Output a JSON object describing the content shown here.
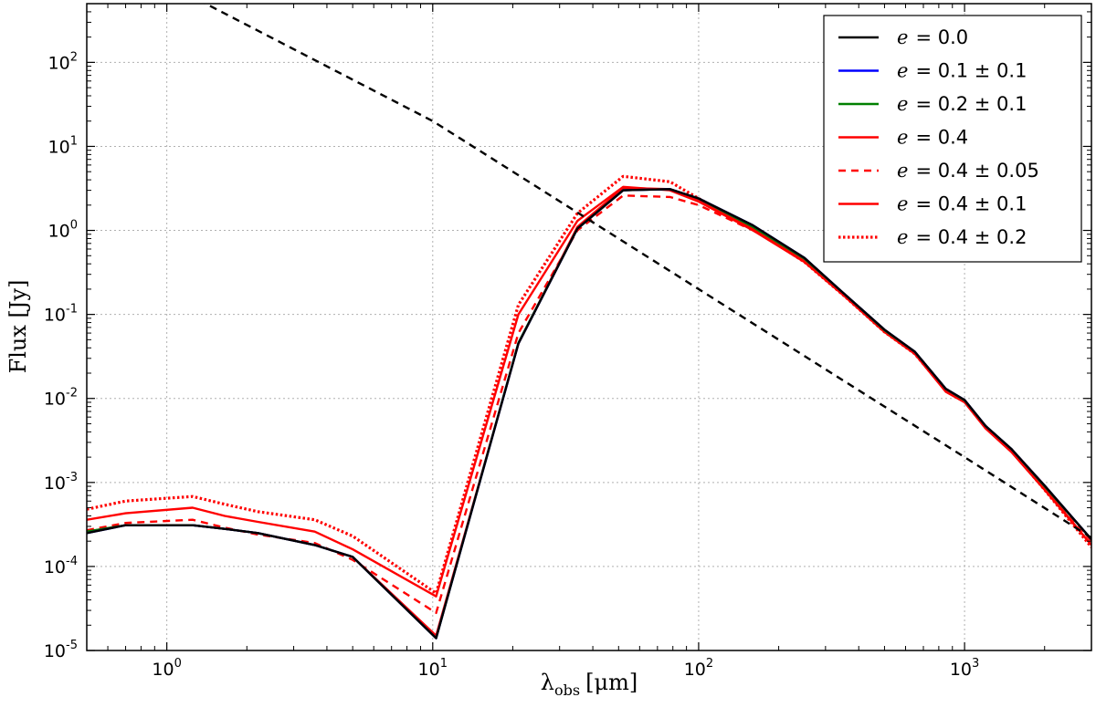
{
  "chart_data": {
    "type": "line",
    "xlabel": "λobs [μm]",
    "xlabel_main": "λ",
    "xlabel_sub": "obs",
    "xlabel_unit": "[μm]",
    "ylabel": "Flux [Jy]",
    "xscale": "log",
    "yscale": "log",
    "xlim": [
      0.5,
      3000
    ],
    "ylim": [
      1e-05,
      500
    ],
    "grid": true,
    "legend_position": "top-right",
    "x_ticks": [
      {
        "base": "10",
        "exp": "0",
        "value": 1
      },
      {
        "base": "10",
        "exp": "1",
        "value": 10
      },
      {
        "base": "10",
        "exp": "2",
        "value": 100
      },
      {
        "base": "10",
        "exp": "3",
        "value": 1000
      }
    ],
    "y_ticks": [
      {
        "base": "10",
        "exp": "-5",
        "value": 1e-05
      },
      {
        "base": "10",
        "exp": "-4",
        "value": 0.0001
      },
      {
        "base": "10",
        "exp": "-3",
        "value": 0.001
      },
      {
        "base": "10",
        "exp": "-2",
        "value": 0.01
      },
      {
        "base": "10",
        "exp": "-1",
        "value": 0.1
      },
      {
        "base": "10",
        "exp": "0",
        "value": 1
      },
      {
        "base": "10",
        "exp": "1",
        "value": 10
      },
      {
        "base": "10",
        "exp": "2",
        "value": 100
      }
    ],
    "series": [
      {
        "name": "e = 0.4 ± 0.2",
        "label_prefix": "e",
        "label_value": "= 0.4 ± 0.2",
        "color": "#ff0000",
        "style": "dotted",
        "x": [
          0.5,
          0.7,
          1.25,
          1.65,
          2.2,
          3.6,
          5.0,
          10.3,
          21,
          35,
          52,
          78,
          100,
          160,
          250,
          350,
          500,
          650,
          850,
          1000,
          1200,
          1500,
          2000,
          3000
        ],
        "y": [
          0.00048,
          0.0006,
          0.00068,
          0.00055,
          0.00045,
          0.00036,
          0.00023,
          4.8e-05,
          0.13,
          1.6,
          4.4,
          3.8,
          2.4,
          1.05,
          0.42,
          0.17,
          0.062,
          0.034,
          0.0125,
          0.0092,
          0.0045,
          0.0024,
          0.00082,
          0.00017
        ]
      },
      {
        "name": "e = 0.4 ± 0.1",
        "label_prefix": "e",
        "label_value": "= 0.4 ± 0.1",
        "color": "#ff0000",
        "style": "solid",
        "x": [
          0.5,
          0.7,
          1.25,
          1.65,
          2.2,
          3.6,
          5.0,
          10.3,
          21,
          35,
          52,
          78,
          100,
          160,
          250,
          350,
          500,
          650,
          850,
          1000,
          1200,
          1500,
          2000,
          3000
        ],
        "y": [
          0.00036,
          0.00043,
          0.0005,
          0.0004,
          0.00034,
          0.00026,
          0.00016,
          4.4e-05,
          0.1,
          1.3,
          3.3,
          3.0,
          2.2,
          1.0,
          0.42,
          0.17,
          0.062,
          0.034,
          0.0125,
          0.0092,
          0.0045,
          0.0024,
          0.00085,
          0.00018
        ]
      },
      {
        "name": "e = 0.4 ± 0.05",
        "label_prefix": "e",
        "label_value": "= 0.4 ± 0.05",
        "color": "#ff0000",
        "style": "dashed",
        "x": [
          0.5,
          0.7,
          1.25,
          1.65,
          2.2,
          3.6,
          5.0,
          10.3,
          21,
          35,
          52,
          78,
          100,
          160,
          250,
          350,
          500,
          650,
          850,
          1000,
          1200,
          1500,
          2000,
          3000
        ],
        "y": [
          0.00027,
          0.00033,
          0.00036,
          0.00029,
          0.00024,
          0.00019,
          0.00012,
          2.8e-05,
          0.06,
          1.0,
          2.6,
          2.5,
          2.0,
          1.0,
          0.44,
          0.18,
          0.065,
          0.036,
          0.013,
          0.0095,
          0.0047,
          0.0025,
          0.00092,
          0.0002
        ]
      },
      {
        "name": "e = 0.4",
        "label_prefix": "e",
        "label_value": "= 0.4",
        "color": "#ff0000",
        "style": "solid",
        "x": [
          0.5,
          0.7,
          1.25,
          1.65,
          2.2,
          3.6,
          5.0,
          10.3,
          21,
          35,
          52,
          78,
          100,
          160,
          250,
          350,
          500,
          650,
          850,
          1000,
          1200,
          1500,
          2000,
          3000
        ],
        "y": [
          0.00026,
          0.00031,
          0.00031,
          0.00028,
          0.00025,
          0.00018,
          0.00013,
          1.5e-05,
          0.045,
          1.1,
          3.2,
          3.1,
          2.3,
          1.05,
          0.43,
          0.17,
          0.062,
          0.034,
          0.012,
          0.009,
          0.0044,
          0.0023,
          0.00082,
          0.00018
        ]
      },
      {
        "name": "e = 0.2 ± 0.1",
        "label_prefix": "e",
        "label_value": "= 0.2 ± 0.1",
        "color": "#008000",
        "style": "solid",
        "x": [
          0.5,
          0.7,
          1.25,
          1.65,
          2.2,
          3.6,
          5.0,
          10.3,
          21,
          35,
          52,
          78,
          100,
          160,
          250,
          350,
          500,
          650,
          850,
          1000,
          1200,
          1500,
          2000,
          3000
        ],
        "y": [
          0.00026,
          0.00031,
          0.00031,
          0.00028,
          0.00025,
          0.00018,
          0.00013,
          1.4e-05,
          0.046,
          1.05,
          3.0,
          3.1,
          2.4,
          1.1,
          0.46,
          0.18,
          0.065,
          0.036,
          0.013,
          0.0095,
          0.0047,
          0.0025,
          0.0009,
          0.00021
        ]
      },
      {
        "name": "e = 0.1 ± 0.1",
        "label_prefix": "e",
        "label_value": "= 0.1 ± 0.1",
        "color": "#0000ff",
        "style": "solid",
        "x": [
          0.5,
          0.7,
          1.25,
          1.65,
          2.2,
          3.6,
          5.0,
          10.3,
          21,
          35,
          52,
          78,
          100,
          160,
          250,
          350,
          500,
          650,
          850,
          1000,
          1200,
          1500,
          2000,
          3000
        ],
        "y": [
          0.00025,
          0.00031,
          0.00031,
          0.00028,
          0.00025,
          0.00018,
          0.00013,
          1.4e-05,
          0.045,
          1.05,
          3.0,
          3.1,
          2.4,
          1.15,
          0.47,
          0.18,
          0.066,
          0.036,
          0.013,
          0.0096,
          0.0047,
          0.0025,
          0.00092,
          0.00021
        ]
      },
      {
        "name": "e = 0.0",
        "label_prefix": "e",
        "label_value": "= 0.0",
        "color": "#000000",
        "style": "solid",
        "x": [
          0.5,
          0.7,
          1.25,
          1.65,
          2.2,
          3.6,
          5.0,
          10.3,
          21,
          35,
          52,
          78,
          100,
          160,
          250,
          350,
          500,
          650,
          850,
          1000,
          1200,
          1500,
          2000,
          3000
        ],
        "y": [
          0.00025,
          0.00031,
          0.00031,
          0.00028,
          0.00025,
          0.00018,
          0.00013,
          1.4e-05,
          0.045,
          1.05,
          3.0,
          3.1,
          2.4,
          1.15,
          0.47,
          0.18,
          0.066,
          0.036,
          0.013,
          0.0096,
          0.0047,
          0.0025,
          0.00092,
          0.00021
        ]
      },
      {
        "name": "",
        "color": "#000000",
        "style": "dashed-reference",
        "x": [
          0.5,
          1.4,
          10,
          100,
          1000,
          3000
        ],
        "y": [
          3000,
          500,
          20,
          0.2,
          0.002,
          0.00022
        ]
      }
    ],
    "legend_order": [
      6,
      5,
      4,
      3,
      2,
      1,
      0
    ]
  }
}
